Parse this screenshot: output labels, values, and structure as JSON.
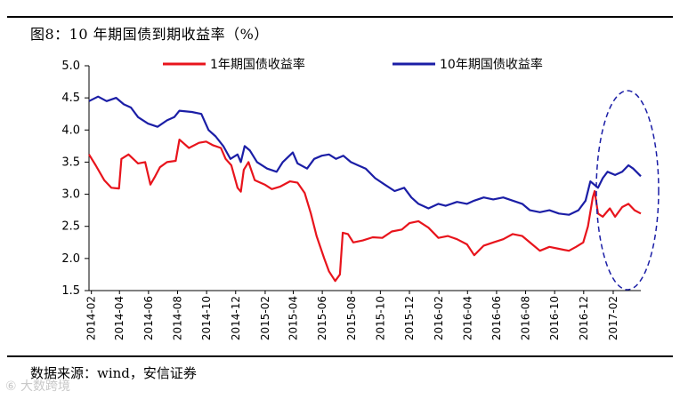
{
  "header": {
    "title": "图8：10 年期国债到期收益率（%）"
  },
  "footer": {
    "source": "数据来源：wind，安信证券",
    "watermark": "⑥ 大数跨境"
  },
  "colors": {
    "series_1y": "#e8141c",
    "series_10y": "#1b1ea6",
    "ellipse": "#1b1ea6",
    "axis": "#000000"
  },
  "chart_data": {
    "type": "line",
    "title": "",
    "xlabel": "",
    "ylabel": "",
    "ylim": [
      1.5,
      5.0
    ],
    "yticks": [
      "5.0",
      "4.5",
      "4.0",
      "3.5",
      "3.0",
      "2.5",
      "2.0",
      "1.5"
    ],
    "xticks": [
      "2014-02",
      "2014-04",
      "2014-06",
      "2014-08",
      "2014-10",
      "2014-12",
      "2015-02",
      "2015-04",
      "2015-06",
      "2015-08",
      "2015-10",
      "2015-12",
      "2016-02",
      "2016-04",
      "2016-06",
      "2016-08",
      "2016-10",
      "2016-12",
      "2017-02"
    ],
    "x_range": [
      "2014-01-27",
      "2017-03-31"
    ],
    "grid": false,
    "legend": "top",
    "annotation": "dashed ellipse highlighting 2016-12 to 2017-03",
    "series": [
      {
        "name": "1年期国债收益率",
        "color": "#e8141c",
        "points": [
          [
            "2014-01-27",
            3.62
          ],
          [
            "2014-02-10",
            3.45
          ],
          [
            "2014-02-28",
            3.22
          ],
          [
            "2014-03-15",
            3.1
          ],
          [
            "2014-03-31",
            3.09
          ],
          [
            "2014-04-05",
            3.55
          ],
          [
            "2014-04-20",
            3.62
          ],
          [
            "2014-05-10",
            3.48
          ],
          [
            "2014-05-25",
            3.5
          ],
          [
            "2014-06-05",
            3.15
          ],
          [
            "2014-06-15",
            3.28
          ],
          [
            "2014-06-25",
            3.42
          ],
          [
            "2014-07-10",
            3.5
          ],
          [
            "2014-07-28",
            3.52
          ],
          [
            "2014-08-05",
            3.85
          ],
          [
            "2014-08-25",
            3.72
          ],
          [
            "2014-09-15",
            3.8
          ],
          [
            "2014-09-30",
            3.82
          ],
          [
            "2014-10-15",
            3.76
          ],
          [
            "2014-10-31",
            3.72
          ],
          [
            "2014-11-10",
            3.55
          ],
          [
            "2014-11-22",
            3.45
          ],
          [
            "2014-12-05",
            3.1
          ],
          [
            "2014-12-12",
            3.04
          ],
          [
            "2014-12-18",
            3.38
          ],
          [
            "2014-12-28",
            3.5
          ],
          [
            "2015-01-10",
            3.22
          ],
          [
            "2015-01-31",
            3.15
          ],
          [
            "2015-02-15",
            3.08
          ],
          [
            "2015-03-05",
            3.12
          ],
          [
            "2015-03-25",
            3.2
          ],
          [
            "2015-04-10",
            3.18
          ],
          [
            "2015-04-25",
            3.02
          ],
          [
            "2015-05-08",
            2.7
          ],
          [
            "2015-05-20",
            2.35
          ],
          [
            "2015-06-05",
            2.0
          ],
          [
            "2015-06-15",
            1.8
          ],
          [
            "2015-06-28",
            1.65
          ],
          [
            "2015-07-08",
            1.75
          ],
          [
            "2015-07-14",
            2.4
          ],
          [
            "2015-07-25",
            2.38
          ],
          [
            "2015-08-05",
            2.25
          ],
          [
            "2015-08-25",
            2.28
          ],
          [
            "2015-09-15",
            2.33
          ],
          [
            "2015-10-05",
            2.32
          ],
          [
            "2015-10-25",
            2.42
          ],
          [
            "2015-11-15",
            2.45
          ],
          [
            "2015-12-01",
            2.55
          ],
          [
            "2015-12-20",
            2.58
          ],
          [
            "2016-01-10",
            2.48
          ],
          [
            "2016-01-31",
            2.32
          ],
          [
            "2016-02-20",
            2.35
          ],
          [
            "2016-03-10",
            2.3
          ],
          [
            "2016-03-31",
            2.22
          ],
          [
            "2016-04-15",
            2.05
          ],
          [
            "2016-05-05",
            2.2
          ],
          [
            "2016-05-25",
            2.25
          ],
          [
            "2016-06-15",
            2.3
          ],
          [
            "2016-07-05",
            2.38
          ],
          [
            "2016-07-25",
            2.35
          ],
          [
            "2016-08-15",
            2.22
          ],
          [
            "2016-08-31",
            2.12
          ],
          [
            "2016-09-20",
            2.18
          ],
          [
            "2016-10-10",
            2.15
          ],
          [
            "2016-10-31",
            2.12
          ],
          [
            "2016-11-15",
            2.18
          ],
          [
            "2016-11-30",
            2.25
          ],
          [
            "2016-12-10",
            2.5
          ],
          [
            "2016-12-20",
            2.95
          ],
          [
            "2016-12-24",
            3.05
          ],
          [
            "2016-12-31",
            2.7
          ],
          [
            "2017-01-10",
            2.65
          ],
          [
            "2017-01-25",
            2.78
          ],
          [
            "2017-02-05",
            2.65
          ],
          [
            "2017-02-20",
            2.8
          ],
          [
            "2017-03-05",
            2.85
          ],
          [
            "2017-03-18",
            2.75
          ],
          [
            "2017-03-31",
            2.7
          ]
        ]
      },
      {
        "name": "10年期国债收益率",
        "color": "#1b1ea6",
        "points": [
          [
            "2014-01-27",
            4.45
          ],
          [
            "2014-02-15",
            4.52
          ],
          [
            "2014-03-05",
            4.45
          ],
          [
            "2014-03-25",
            4.5
          ],
          [
            "2014-04-10",
            4.4
          ],
          [
            "2014-04-25",
            4.35
          ],
          [
            "2014-05-10",
            4.2
          ],
          [
            "2014-05-31",
            4.1
          ],
          [
            "2014-06-20",
            4.05
          ],
          [
            "2014-07-10",
            4.15
          ],
          [
            "2014-07-25",
            4.2
          ],
          [
            "2014-08-05",
            4.3
          ],
          [
            "2014-08-31",
            4.28
          ],
          [
            "2014-09-20",
            4.25
          ],
          [
            "2014-10-05",
            4.0
          ],
          [
            "2014-10-20",
            3.9
          ],
          [
            "2014-11-05",
            3.75
          ],
          [
            "2014-11-20",
            3.55
          ],
          [
            "2014-12-05",
            3.62
          ],
          [
            "2014-12-12",
            3.5
          ],
          [
            "2014-12-20",
            3.75
          ],
          [
            "2014-12-31",
            3.68
          ],
          [
            "2015-01-15",
            3.5
          ],
          [
            "2015-02-05",
            3.4
          ],
          [
            "2015-02-25",
            3.35
          ],
          [
            "2015-03-10",
            3.5
          ],
          [
            "2015-03-31",
            3.65
          ],
          [
            "2015-04-10",
            3.48
          ],
          [
            "2015-04-30",
            3.4
          ],
          [
            "2015-05-15",
            3.55
          ],
          [
            "2015-05-31",
            3.6
          ],
          [
            "2015-06-15",
            3.62
          ],
          [
            "2015-06-30",
            3.55
          ],
          [
            "2015-07-15",
            3.6
          ],
          [
            "2015-07-31",
            3.5
          ],
          [
            "2015-08-15",
            3.45
          ],
          [
            "2015-08-31",
            3.4
          ],
          [
            "2015-09-20",
            3.25
          ],
          [
            "2015-10-10",
            3.15
          ],
          [
            "2015-10-31",
            3.05
          ],
          [
            "2015-11-20",
            3.1
          ],
          [
            "2015-12-05",
            2.95
          ],
          [
            "2015-12-20",
            2.85
          ],
          [
            "2016-01-10",
            2.78
          ],
          [
            "2016-01-31",
            2.85
          ],
          [
            "2016-02-15",
            2.82
          ],
          [
            "2016-03-10",
            2.88
          ],
          [
            "2016-03-31",
            2.85
          ],
          [
            "2016-04-15",
            2.9
          ],
          [
            "2016-05-05",
            2.95
          ],
          [
            "2016-05-25",
            2.92
          ],
          [
            "2016-06-15",
            2.95
          ],
          [
            "2016-07-05",
            2.9
          ],
          [
            "2016-07-25",
            2.85
          ],
          [
            "2016-08-10",
            2.75
          ],
          [
            "2016-08-31",
            2.72
          ],
          [
            "2016-09-20",
            2.75
          ],
          [
            "2016-10-10",
            2.7
          ],
          [
            "2016-10-31",
            2.68
          ],
          [
            "2016-11-20",
            2.75
          ],
          [
            "2016-12-05",
            2.9
          ],
          [
            "2016-12-15",
            3.2
          ],
          [
            "2016-12-31",
            3.1
          ],
          [
            "2017-01-10",
            3.25
          ],
          [
            "2017-01-20",
            3.35
          ],
          [
            "2017-02-05",
            3.3
          ],
          [
            "2017-02-20",
            3.35
          ],
          [
            "2017-03-05",
            3.45
          ],
          [
            "2017-03-15",
            3.4
          ],
          [
            "2017-03-31",
            3.28
          ]
        ]
      }
    ]
  }
}
